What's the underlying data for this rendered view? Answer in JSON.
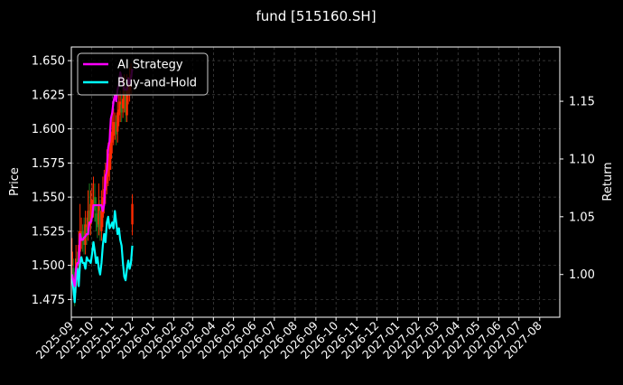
{
  "title": "fund [515160.SH]",
  "colors": {
    "background": "#000000",
    "ai_strategy": "#ff00ff",
    "buy_and_hold": "#00ffff",
    "candle_up": "#ff2a00",
    "candle_down": "#1e7a1e",
    "grid": "#555555",
    "text": "#ffffff"
  },
  "chart_data": {
    "type": "line",
    "title": "fund [515160.SH]",
    "xlabel": "",
    "ylabel_left": "Price",
    "ylabel_right": "Return",
    "grid": true,
    "legend_position": "top-left",
    "left_axis": {
      "ylim": [
        1.462,
        1.66
      ],
      "ticks": [
        "1.475",
        "1.500",
        "1.525",
        "1.550",
        "1.575",
        "1.600",
        "1.625",
        "1.650"
      ]
    },
    "right_axis": {
      "ylim": [
        0.963,
        1.197
      ],
      "ticks": [
        "1.00",
        "1.05",
        "1.10",
        "1.15"
      ]
    },
    "x_axis": {
      "type": "date",
      "range": [
        "2025-09-01",
        "2027-08-31"
      ],
      "ticks": [
        "2025-09",
        "2025-10",
        "2025-11",
        "2025-12",
        "2026-01",
        "2026-02",
        "2026-03",
        "2026-04",
        "2026-05",
        "2026-06",
        "2026-07",
        "2026-08",
        "2026-09",
        "2026-10",
        "2026-11",
        "2026-12",
        "2027-01",
        "2027-02",
        "2027-03",
        "2027-04",
        "2027-05",
        "2027-06",
        "2027-07",
        "2027-08"
      ]
    },
    "series": [
      {
        "name": "AI Strategy",
        "axis": "right",
        "x": [
          "2025-09-02",
          "2025-09-04",
          "2025-09-06",
          "2025-09-08",
          "2025-09-10",
          "2025-09-12",
          "2025-09-14",
          "2025-09-16",
          "2025-09-18",
          "2025-09-20",
          "2025-09-22",
          "2025-09-24",
          "2025-09-26",
          "2025-09-28",
          "2025-09-30",
          "2025-10-02",
          "2025-10-04",
          "2025-10-06",
          "2025-10-08",
          "2025-10-10",
          "2025-10-12",
          "2025-10-14",
          "2025-10-16",
          "2025-10-18",
          "2025-10-20",
          "2025-10-22",
          "2025-10-24",
          "2025-10-26",
          "2025-10-28",
          "2025-10-30",
          "2025-11-01",
          "2025-11-03",
          "2025-11-05",
          "2025-11-07",
          "2025-11-09",
          "2025-11-11",
          "2025-11-13",
          "2025-11-15",
          "2025-11-17",
          "2025-11-19",
          "2025-11-21",
          "2025-11-23",
          "2025-11-25",
          "2025-11-27",
          "2025-11-29",
          "2025-12-01"
        ],
        "values": [
          1.0,
          0.995,
          0.99,
          1.005,
          1.01,
          1.01,
          1.035,
          1.03,
          1.03,
          1.032,
          1.033,
          1.035,
          1.035,
          1.045,
          1.045,
          1.05,
          1.06,
          1.06,
          1.06,
          1.06,
          1.06,
          1.06,
          1.06,
          1.055,
          1.06,
          1.085,
          1.09,
          1.11,
          1.115,
          1.135,
          1.14,
          1.15,
          1.155,
          1.15,
          1.16,
          1.165,
          1.175,
          1.17,
          1.165,
          1.16,
          1.16,
          1.16,
          1.17,
          1.165,
          1.17,
          1.178
        ]
      },
      {
        "name": "Buy-and-Hold",
        "axis": "right",
        "x": [
          "2025-09-02",
          "2025-09-04",
          "2025-09-06",
          "2025-09-08",
          "2025-09-10",
          "2025-09-12",
          "2025-09-14",
          "2025-09-16",
          "2025-09-18",
          "2025-09-20",
          "2025-09-22",
          "2025-09-24",
          "2025-09-26",
          "2025-09-28",
          "2025-09-30",
          "2025-10-02",
          "2025-10-04",
          "2025-10-06",
          "2025-10-08",
          "2025-10-10",
          "2025-10-12",
          "2025-10-14",
          "2025-10-16",
          "2025-10-18",
          "2025-10-20",
          "2025-10-22",
          "2025-10-24",
          "2025-10-26",
          "2025-10-28",
          "2025-10-30",
          "2025-11-01",
          "2025-11-03",
          "2025-11-05",
          "2025-11-07",
          "2025-11-09",
          "2025-11-11",
          "2025-11-13",
          "2025-11-15",
          "2025-11-17",
          "2025-11-19",
          "2025-11-21",
          "2025-11-23",
          "2025-11-25",
          "2025-11-27",
          "2025-11-29",
          "2025-12-01"
        ],
        "values": [
          1.0,
          0.988,
          0.976,
          0.995,
          1.005,
          0.99,
          1.01,
          1.015,
          1.01,
          1.01,
          1.005,
          1.015,
          1.012,
          1.012,
          1.01,
          1.018,
          1.028,
          1.02,
          1.01,
          1.015,
          1.005,
          1.0,
          1.01,
          1.025,
          1.035,
          1.028,
          1.045,
          1.05,
          1.04,
          1.042,
          1.045,
          1.04,
          1.055,
          1.045,
          1.035,
          1.04,
          1.03,
          1.025,
          1.01,
          0.998,
          0.995,
          1.005,
          1.012,
          1.005,
          1.01,
          1.025
        ]
      }
    ],
    "candles": {
      "axis": "left",
      "x": [
        "2025-09-02",
        "2025-09-04",
        "2025-09-06",
        "2025-09-08",
        "2025-09-10",
        "2025-09-12",
        "2025-09-14",
        "2025-09-16",
        "2025-09-18",
        "2025-09-20",
        "2025-09-22",
        "2025-09-24",
        "2025-09-26",
        "2025-09-28",
        "2025-09-30",
        "2025-10-02",
        "2025-10-04",
        "2025-10-06",
        "2025-10-08",
        "2025-10-10",
        "2025-10-12",
        "2025-10-14",
        "2025-10-16",
        "2025-10-18",
        "2025-10-20",
        "2025-10-22",
        "2025-10-24",
        "2025-10-26",
        "2025-10-28",
        "2025-10-30",
        "2025-11-01",
        "2025-11-03",
        "2025-11-05",
        "2025-11-07",
        "2025-11-09",
        "2025-11-11",
        "2025-11-13",
        "2025-11-15",
        "2025-11-17",
        "2025-11-19",
        "2025-11-21",
        "2025-11-23",
        "2025-11-25",
        "2025-11-27",
        "2025-11-29",
        "2025-12-01"
      ],
      "open": [
        1.5,
        1.498,
        1.49,
        1.485,
        1.505,
        1.5,
        1.51,
        1.52,
        1.525,
        1.52,
        1.515,
        1.528,
        1.525,
        1.54,
        1.53,
        1.54,
        1.545,
        1.55,
        1.538,
        1.535,
        1.53,
        1.54,
        1.525,
        1.535,
        1.545,
        1.555,
        1.56,
        1.565,
        1.57,
        1.578,
        1.59,
        1.595,
        1.6,
        1.605,
        1.598,
        1.61,
        1.612,
        1.618,
        1.615,
        1.62,
        1.63,
        1.61,
        1.625,
        1.628,
        1.632,
        1.53
      ],
      "close": [
        1.51,
        1.49,
        1.48,
        1.505,
        1.5,
        1.515,
        1.525,
        1.525,
        1.52,
        1.515,
        1.53,
        1.522,
        1.54,
        1.53,
        1.545,
        1.548,
        1.548,
        1.54,
        1.532,
        1.528,
        1.545,
        1.526,
        1.54,
        1.55,
        1.556,
        1.562,
        1.566,
        1.575,
        1.582,
        1.595,
        1.598,
        1.605,
        1.603,
        1.596,
        1.612,
        1.614,
        1.62,
        1.612,
        1.622,
        1.632,
        1.612,
        1.63,
        1.63,
        1.635,
        1.64,
        1.545
      ],
      "high": [
        1.52,
        1.505,
        1.495,
        1.515,
        1.51,
        1.525,
        1.545,
        1.535,
        1.53,
        1.535,
        1.54,
        1.535,
        1.555,
        1.56,
        1.555,
        1.56,
        1.565,
        1.56,
        1.55,
        1.545,
        1.56,
        1.548,
        1.555,
        1.565,
        1.57,
        1.575,
        1.585,
        1.59,
        1.6,
        1.605,
        1.61,
        1.615,
        1.612,
        1.61,
        1.62,
        1.625,
        1.628,
        1.625,
        1.63,
        1.64,
        1.635,
        1.64,
        1.638,
        1.645,
        1.648,
        1.552
      ],
      "low": [
        1.488,
        1.478,
        1.47,
        1.48,
        1.492,
        1.495,
        1.505,
        1.512,
        1.51,
        1.508,
        1.508,
        1.515,
        1.518,
        1.522,
        1.522,
        1.532,
        1.535,
        1.532,
        1.525,
        1.52,
        1.522,
        1.518,
        1.518,
        1.528,
        1.538,
        1.545,
        1.552,
        1.558,
        1.562,
        1.57,
        1.582,
        1.588,
        1.592,
        1.588,
        1.59,
        1.602,
        1.605,
        1.605,
        1.608,
        1.612,
        1.605,
        1.605,
        1.618,
        1.62,
        1.625,
        1.522
      ]
    }
  },
  "legend": {
    "items": [
      {
        "label": "AI Strategy",
        "color": "#ff00ff"
      },
      {
        "label": "Buy-and-Hold",
        "color": "#00ffff"
      }
    ]
  }
}
